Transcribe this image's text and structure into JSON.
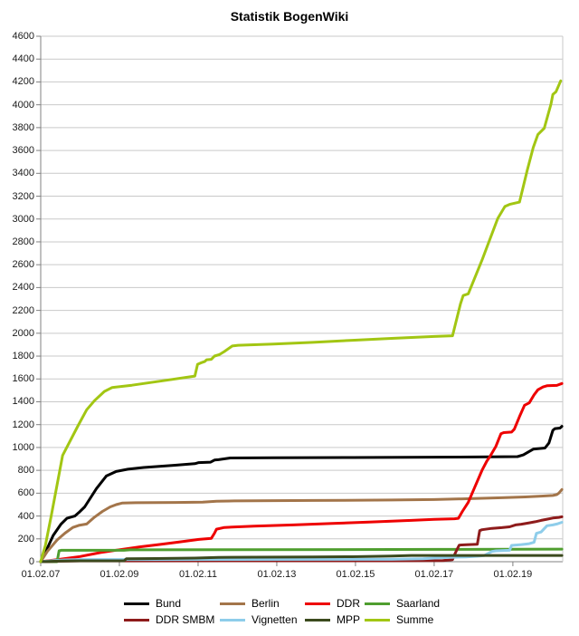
{
  "title": "Statistik BogenWiki",
  "chart_data": {
    "type": "line",
    "title": "Statistik BogenWiki",
    "xlabel": "",
    "ylabel": "",
    "grid": "horizontal-only",
    "legend_position": "bottom",
    "x_range": [
      2007.083,
      2020.35
    ],
    "y_range": [
      0,
      4600
    ],
    "y_tick_step": 200,
    "x_ticks": [
      {
        "label": "01.02.07",
        "year": 2007.083
      },
      {
        "label": "01.02.09",
        "year": 2009.083
      },
      {
        "label": "01.02.11",
        "year": 2011.083
      },
      {
        "label": "01.02.13",
        "year": 2013.083
      },
      {
        "label": "01.02.15",
        "year": 2015.083
      },
      {
        "label": "01.02.17",
        "year": 2017.083
      },
      {
        "label": "01.02.19",
        "year": 2019.083
      }
    ],
    "colors": {
      "grid": "#c9c9c9",
      "axis": "#808080",
      "right_border": "#c9c9c9",
      "tick_label": "#1a1a1a"
    },
    "series": [
      {
        "name": "Bund",
        "color": "#000000",
        "points": [
          [
            2007.08,
            0
          ],
          [
            2007.2,
            80
          ],
          [
            2007.4,
            230
          ],
          [
            2007.6,
            330
          ],
          [
            2007.75,
            380
          ],
          [
            2007.95,
            400
          ],
          [
            2008.05,
            430
          ],
          [
            2008.2,
            480
          ],
          [
            2008.5,
            640
          ],
          [
            2008.75,
            750
          ],
          [
            2009.0,
            790
          ],
          [
            2009.3,
            810
          ],
          [
            2009.7,
            825
          ],
          [
            2010.5,
            845
          ],
          [
            2011.0,
            858
          ],
          [
            2011.1,
            868
          ],
          [
            2011.4,
            872
          ],
          [
            2011.5,
            890
          ],
          [
            2011.6,
            893
          ],
          [
            2011.9,
            908
          ],
          [
            2013.0,
            910
          ],
          [
            2015.0,
            912
          ],
          [
            2017.08,
            915
          ],
          [
            2018.5,
            918
          ],
          [
            2019.2,
            920
          ],
          [
            2019.35,
            935
          ],
          [
            2019.5,
            965
          ],
          [
            2019.6,
            985
          ],
          [
            2019.9,
            995
          ],
          [
            2020.0,
            1040
          ],
          [
            2020.1,
            1150
          ],
          [
            2020.15,
            1165
          ],
          [
            2020.28,
            1170
          ],
          [
            2020.33,
            1185
          ]
        ]
      },
      {
        "name": "Berlin",
        "color": "#a3754a",
        "points": [
          [
            2007.08,
            0
          ],
          [
            2007.25,
            90
          ],
          [
            2007.5,
            190
          ],
          [
            2007.7,
            250
          ],
          [
            2007.9,
            300
          ],
          [
            2008.05,
            318
          ],
          [
            2008.25,
            330
          ],
          [
            2008.45,
            390
          ],
          [
            2008.65,
            440
          ],
          [
            2008.85,
            480
          ],
          [
            2009.0,
            500
          ],
          [
            2009.15,
            513
          ],
          [
            2009.5,
            516
          ],
          [
            2010.5,
            519
          ],
          [
            2011.2,
            522
          ],
          [
            2011.55,
            530
          ],
          [
            2012.0,
            532
          ],
          [
            2014.0,
            536
          ],
          [
            2016.0,
            540
          ],
          [
            2017.08,
            544
          ],
          [
            2018.0,
            552
          ],
          [
            2018.8,
            560
          ],
          [
            2019.4,
            567
          ],
          [
            2019.8,
            574
          ],
          [
            2020.1,
            580
          ],
          [
            2020.2,
            588
          ],
          [
            2020.25,
            600
          ],
          [
            2020.33,
            632
          ]
        ]
      },
      {
        "name": "DDR",
        "color": "#ee0000",
        "points": [
          [
            2007.08,
            0
          ],
          [
            2007.5,
            18
          ],
          [
            2008.08,
            45
          ],
          [
            2008.6,
            80
          ],
          [
            2009.08,
            105
          ],
          [
            2009.6,
            130
          ],
          [
            2010.08,
            150
          ],
          [
            2010.6,
            172
          ],
          [
            2011.1,
            195
          ],
          [
            2011.42,
            205
          ],
          [
            2011.5,
            250
          ],
          [
            2011.55,
            285
          ],
          [
            2011.75,
            300
          ],
          [
            2012.5,
            312
          ],
          [
            2013.5,
            322
          ],
          [
            2014.5,
            335
          ],
          [
            2015.5,
            348
          ],
          [
            2016.5,
            362
          ],
          [
            2017.08,
            370
          ],
          [
            2017.6,
            376
          ],
          [
            2017.7,
            380
          ],
          [
            2017.8,
            440
          ],
          [
            2017.95,
            520
          ],
          [
            2018.1,
            640
          ],
          [
            2018.3,
            800
          ],
          [
            2018.42,
            880
          ],
          [
            2018.5,
            920
          ],
          [
            2018.65,
            1010
          ],
          [
            2018.78,
            1120
          ],
          [
            2018.85,
            1130
          ],
          [
            2019.05,
            1135
          ],
          [
            2019.12,
            1160
          ],
          [
            2019.25,
            1270
          ],
          [
            2019.38,
            1370
          ],
          [
            2019.5,
            1390
          ],
          [
            2019.62,
            1460
          ],
          [
            2019.72,
            1505
          ],
          [
            2019.85,
            1530
          ],
          [
            2019.95,
            1540
          ],
          [
            2020.2,
            1543
          ],
          [
            2020.33,
            1560
          ]
        ]
      },
      {
        "name": "Saarland",
        "color": "#4f9e2f",
        "points": [
          [
            2007.08,
            0
          ],
          [
            2007.5,
            0
          ],
          [
            2007.55,
            95
          ],
          [
            2007.6,
            100
          ],
          [
            2009.2,
            100
          ],
          [
            2009.35,
            104
          ],
          [
            2012.0,
            105
          ],
          [
            2016.0,
            107
          ],
          [
            2017.2,
            108
          ],
          [
            2020.33,
            110
          ]
        ]
      },
      {
        "name": "DDR SMBM",
        "color": "#8e1b1b",
        "points": [
          [
            2007.08,
            0
          ],
          [
            2007.5,
            4
          ],
          [
            2008.08,
            7
          ],
          [
            2016.0,
            8
          ],
          [
            2017.3,
            10
          ],
          [
            2017.55,
            18
          ],
          [
            2017.6,
            60
          ],
          [
            2017.66,
            105
          ],
          [
            2017.72,
            145
          ],
          [
            2017.9,
            148
          ],
          [
            2018.18,
            152
          ],
          [
            2018.24,
            272
          ],
          [
            2018.3,
            280
          ],
          [
            2018.55,
            292
          ],
          [
            2018.8,
            298
          ],
          [
            2019.0,
            305
          ],
          [
            2019.15,
            322
          ],
          [
            2019.3,
            328
          ],
          [
            2019.5,
            340
          ],
          [
            2019.65,
            350
          ],
          [
            2019.8,
            362
          ],
          [
            2019.95,
            372
          ],
          [
            2020.1,
            382
          ],
          [
            2020.25,
            388
          ],
          [
            2020.33,
            393
          ]
        ]
      },
      {
        "name": "Vignetten",
        "color": "#8ecdea",
        "points": [
          [
            2007.08,
            0
          ],
          [
            2007.4,
            10
          ],
          [
            2007.7,
            16
          ],
          [
            2008.08,
            19
          ],
          [
            2016.0,
            21
          ],
          [
            2016.8,
            26
          ],
          [
            2017.2,
            33
          ],
          [
            2017.5,
            38
          ],
          [
            2017.9,
            42
          ],
          [
            2018.2,
            48
          ],
          [
            2018.35,
            53
          ],
          [
            2018.55,
            90
          ],
          [
            2018.65,
            95
          ],
          [
            2019.0,
            100
          ],
          [
            2019.05,
            143
          ],
          [
            2019.3,
            150
          ],
          [
            2019.5,
            158
          ],
          [
            2019.62,
            170
          ],
          [
            2019.68,
            248
          ],
          [
            2019.8,
            260
          ],
          [
            2019.95,
            315
          ],
          [
            2020.1,
            322
          ],
          [
            2020.2,
            330
          ],
          [
            2020.33,
            345
          ]
        ]
      },
      {
        "name": "MPP",
        "color": "#3b4a1e",
        "points": [
          [
            2007.08,
            0
          ],
          [
            2007.6,
            6
          ],
          [
            2008.08,
            8
          ],
          [
            2009.2,
            8
          ],
          [
            2009.26,
            26
          ],
          [
            2010.0,
            28
          ],
          [
            2011.0,
            32
          ],
          [
            2011.6,
            38
          ],
          [
            2012.5,
            40
          ],
          [
            2014.0,
            42
          ],
          [
            2015.0,
            44
          ],
          [
            2016.0,
            50
          ],
          [
            2016.5,
            55
          ],
          [
            2020.33,
            55
          ]
        ]
      },
      {
        "name": "Summe",
        "color": "#a2c613",
        "points": [
          [
            2007.08,
            0
          ],
          [
            2007.2,
            140
          ],
          [
            2007.35,
            400
          ],
          [
            2007.64,
            930
          ],
          [
            2008.03,
            1190
          ],
          [
            2008.25,
            1330
          ],
          [
            2008.45,
            1410
          ],
          [
            2008.7,
            1490
          ],
          [
            2008.9,
            1525
          ],
          [
            2009.4,
            1545
          ],
          [
            2010.2,
            1585
          ],
          [
            2011.0,
            1625
          ],
          [
            2011.07,
            1728
          ],
          [
            2011.15,
            1740
          ],
          [
            2011.25,
            1752
          ],
          [
            2011.3,
            1768
          ],
          [
            2011.42,
            1772
          ],
          [
            2011.5,
            1800
          ],
          [
            2011.62,
            1812
          ],
          [
            2011.75,
            1840
          ],
          [
            2011.95,
            1888
          ],
          [
            2012.1,
            1895
          ],
          [
            2013.0,
            1905
          ],
          [
            2014.0,
            1920
          ],
          [
            2015.0,
            1938
          ],
          [
            2016.0,
            1955
          ],
          [
            2017.08,
            1972
          ],
          [
            2017.55,
            1978
          ],
          [
            2017.75,
            2255
          ],
          [
            2017.82,
            2330
          ],
          [
            2017.95,
            2345
          ],
          [
            2018.3,
            2640
          ],
          [
            2018.7,
            3005
          ],
          [
            2018.88,
            3110
          ],
          [
            2019.0,
            3128
          ],
          [
            2019.25,
            3148
          ],
          [
            2019.45,
            3430
          ],
          [
            2019.6,
            3625
          ],
          [
            2019.72,
            3740
          ],
          [
            2019.88,
            3795
          ],
          [
            2020.05,
            4005
          ],
          [
            2020.1,
            4090
          ],
          [
            2020.18,
            4115
          ],
          [
            2020.3,
            4210
          ]
        ]
      }
    ],
    "legend_rows": [
      [
        "Bund",
        "Berlin",
        "DDR",
        "Saarland"
      ],
      [
        "DDR SMBM",
        "Vignetten",
        "MPP",
        "Summe"
      ]
    ]
  }
}
